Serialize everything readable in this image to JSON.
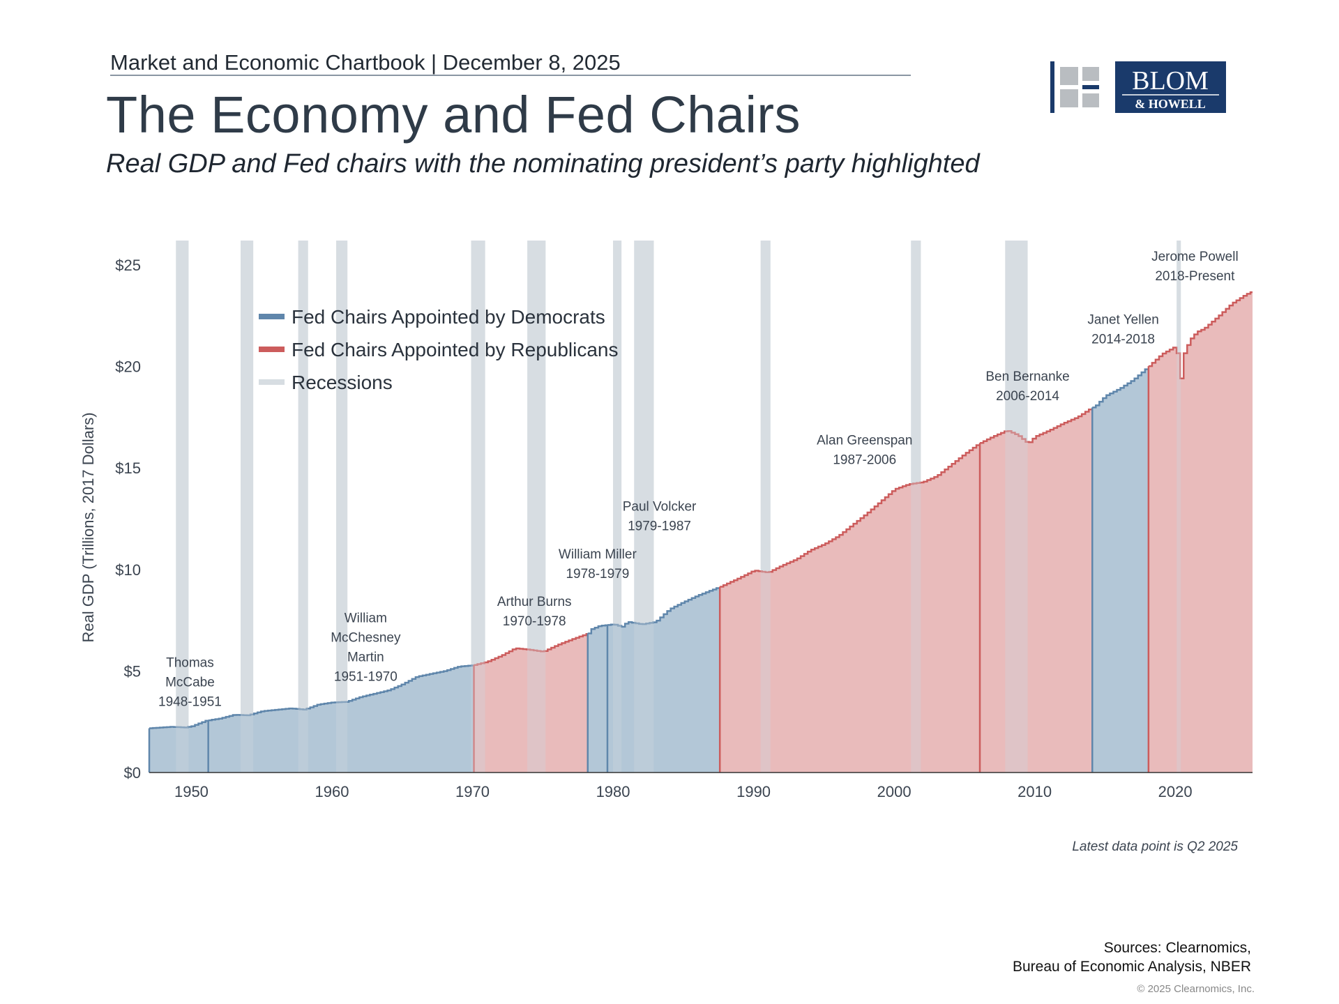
{
  "header": {
    "chartbook": "Market and Economic Chartbook | December 8, 2025",
    "title": "The Economy and Fed Chairs",
    "subtitle": "Real GDP and Fed chairs with the nominating president’s party highlighted"
  },
  "logo": {
    "line1": "BLOM",
    "line2": "& HOWELL",
    "color": "#1a3a6b",
    "mark_gray": "#b9bdc1"
  },
  "footer": {
    "note": "Latest data point is Q2 2025",
    "sources_line1": "Sources: Clearnomics,",
    "sources_line2": "Bureau of Economic Analysis, NBER",
    "copyright": "© 2025 Clearnomics, Inc."
  },
  "chart_data": {
    "type": "area",
    "ylabel": "Real GDP (Trillions, 2017 Dollars)",
    "xlim": [
      1947,
      2025.5
    ],
    "ylim": [
      0,
      25
    ],
    "y_ticks": [
      0,
      5,
      10,
      15,
      20,
      25
    ],
    "y_tick_labels": [
      "$0",
      "$5",
      "$10",
      "$15",
      "$20",
      "$25"
    ],
    "x_ticks": [
      1950,
      1960,
      1970,
      1980,
      1990,
      2000,
      2010,
      2020
    ],
    "x_tick_labels": [
      "1950",
      "1960",
      "1970",
      "1980",
      "1990",
      "2000",
      "2010",
      "2020"
    ],
    "grid": false,
    "legend_position": "top-left",
    "legend": [
      {
        "label": "Fed Chairs Appointed by Democrats",
        "key": "dem"
      },
      {
        "label": "Fed Chairs Appointed by Republicans",
        "key": "rep"
      },
      {
        "label": "Recessions",
        "key": "rec"
      }
    ],
    "colors": {
      "dem_fill": "#a8bfd2",
      "dem_line": "#5f86ab",
      "rep_fill": "#e6b2b2",
      "rep_line": "#cc5c5c",
      "recession": "#d7dde2",
      "axis": "#333333"
    },
    "gdp_points": [
      [
        1947,
        2.18
      ],
      [
        1948.5,
        2.25
      ],
      [
        1949.5,
        2.22
      ],
      [
        1950,
        2.28
      ],
      [
        1951,
        2.55
      ],
      [
        1952,
        2.66
      ],
      [
        1953,
        2.84
      ],
      [
        1954,
        2.82
      ],
      [
        1955,
        3.02
      ],
      [
        1957,
        3.16
      ],
      [
        1958,
        3.1
      ],
      [
        1959,
        3.35
      ],
      [
        1960,
        3.45
      ],
      [
        1961,
        3.48
      ],
      [
        1962,
        3.72
      ],
      [
        1964,
        4.05
      ],
      [
        1965,
        4.35
      ],
      [
        1966,
        4.72
      ],
      [
        1968,
        5.0
      ],
      [
        1969,
        5.22
      ],
      [
        1970,
        5.28
      ],
      [
        1971,
        5.45
      ],
      [
        1972,
        5.75
      ],
      [
        1973,
        6.12
      ],
      [
        1974,
        6.05
      ],
      [
        1975,
        5.95
      ],
      [
        1976,
        6.28
      ],
      [
        1977,
        6.55
      ],
      [
        1978.2,
        6.85
      ],
      [
        1978.4,
        7.05
      ],
      [
        1979,
        7.22
      ],
      [
        1980,
        7.3
      ],
      [
        1980.6,
        7.18
      ],
      [
        1981,
        7.42
      ],
      [
        1982,
        7.3
      ],
      [
        1983,
        7.42
      ],
      [
        1984,
        8.05
      ],
      [
        1985,
        8.4
      ],
      [
        1986,
        8.72
      ],
      [
        1987.6,
        9.15
      ],
      [
        1989,
        9.6
      ],
      [
        1990,
        9.95
      ],
      [
        1991,
        9.85
      ],
      [
        1992,
        10.2
      ],
      [
        1993,
        10.5
      ],
      [
        1994,
        10.95
      ],
      [
        1995,
        11.25
      ],
      [
        1996,
        11.65
      ],
      [
        1997,
        12.2
      ],
      [
        1998,
        12.75
      ],
      [
        1999,
        13.35
      ],
      [
        2000,
        13.95
      ],
      [
        2001,
        14.2
      ],
      [
        2002,
        14.3
      ],
      [
        2003,
        14.6
      ],
      [
        2004,
        15.15
      ],
      [
        2005,
        15.7
      ],
      [
        2006,
        16.2
      ],
      [
        2007,
        16.55
      ],
      [
        2008,
        16.85
      ],
      [
        2008.8,
        16.6
      ],
      [
        2009.5,
        16.2
      ],
      [
        2010,
        16.55
      ],
      [
        2011,
        16.85
      ],
      [
        2012,
        17.2
      ],
      [
        2013,
        17.5
      ],
      [
        2014,
        17.95
      ],
      [
        2014.3,
        18.05
      ],
      [
        2015,
        18.55
      ],
      [
        2016,
        18.9
      ],
      [
        2017,
        19.35
      ],
      [
        2018,
        19.95
      ],
      [
        2019,
        20.6
      ],
      [
        2019.9,
        20.95
      ],
      [
        2020.2,
        20.5
      ],
      [
        2020.4,
        19.05
      ],
      [
        2020.6,
        20.65
      ],
      [
        2021,
        21.3
      ],
      [
        2021.5,
        21.7
      ],
      [
        2022,
        21.85
      ],
      [
        2023,
        22.45
      ],
      [
        2024,
        23.1
      ],
      [
        2025,
        23.55
      ],
      [
        2025.5,
        23.7
      ]
    ],
    "chairs": [
      {
        "name": "Thomas McCabe",
        "years": "1948-1951",
        "start": 1947,
        "end": 1951.2,
        "party": "dem"
      },
      {
        "name": "William McChesney Martin",
        "years": "1951-1970",
        "start": 1951.2,
        "end": 1970.1,
        "party": "dem"
      },
      {
        "name": "Arthur Burns",
        "years": "1970-1978",
        "start": 1970.1,
        "end": 1978.2,
        "party": "rep"
      },
      {
        "name": "William Miller",
        "years": "1978-1979",
        "start": 1978.2,
        "end": 1979.6,
        "party": "dem"
      },
      {
        "name": "Paul Volcker",
        "years": "1979-1987",
        "start": 1979.6,
        "end": 1987.6,
        "party": "dem"
      },
      {
        "name": "Alan Greenspan",
        "years": "1987-2006",
        "start": 1987.6,
        "end": 2006.1,
        "party": "rep"
      },
      {
        "name": "Ben Bernanke",
        "years": "2006-2014",
        "start": 2006.1,
        "end": 2014.1,
        "party": "rep"
      },
      {
        "name": "Janet Yellen",
        "years": "2014-2018",
        "start": 2014.1,
        "end": 2018.1,
        "party": "dem"
      },
      {
        "name": "Jerome Powell",
        "years": "2018-Present",
        "start": 2018.1,
        "end": 2025.5,
        "party": "rep"
      }
    ],
    "recessions": [
      [
        1948.9,
        1949.8
      ],
      [
        1953.5,
        1954.4
      ],
      [
        1957.6,
        1958.3
      ],
      [
        1960.3,
        1961.1
      ],
      [
        1969.9,
        1970.9
      ],
      [
        1973.9,
        1975.2
      ],
      [
        1980.0,
        1980.6
      ],
      [
        1981.5,
        1982.9
      ],
      [
        1990.5,
        1991.2
      ],
      [
        2001.2,
        2001.9
      ],
      [
        2007.9,
        2009.5
      ],
      [
        2020.1,
        2020.4
      ]
    ],
    "annotations": [
      {
        "lines": [
          "Thomas",
          "McCabe",
          "1948-1951"
        ],
        "x": 1949.9,
        "y": 5.2
      },
      {
        "lines": [
          "William",
          "McChesney",
          "Martin",
          "1951-1970"
        ],
        "x": 1962.4,
        "y": 7.4
      },
      {
        "lines": [
          "Arthur Burns",
          "1970-1978"
        ],
        "x": 1974.4,
        "y": 8.2
      },
      {
        "lines": [
          "William Miller",
          "1978-1979"
        ],
        "x": 1978.9,
        "y": 10.55
      },
      {
        "lines": [
          "Paul Volcker",
          "1979-1987"
        ],
        "x": 1983.3,
        "y": 12.9
      },
      {
        "lines": [
          "Alan Greenspan",
          "1987-2006"
        ],
        "x": 1997.9,
        "y": 16.15
      },
      {
        "lines": [
          "Ben Bernanke",
          "2006-2014"
        ],
        "x": 2009.5,
        "y": 19.3
      },
      {
        "lines": [
          "Janet Yellen",
          "2014-2018"
        ],
        "x": 2016.3,
        "y": 22.1
      },
      {
        "lines": [
          "Jerome Powell",
          "2018-Present"
        ],
        "x": 2021.4,
        "y": 25.2
      }
    ]
  }
}
